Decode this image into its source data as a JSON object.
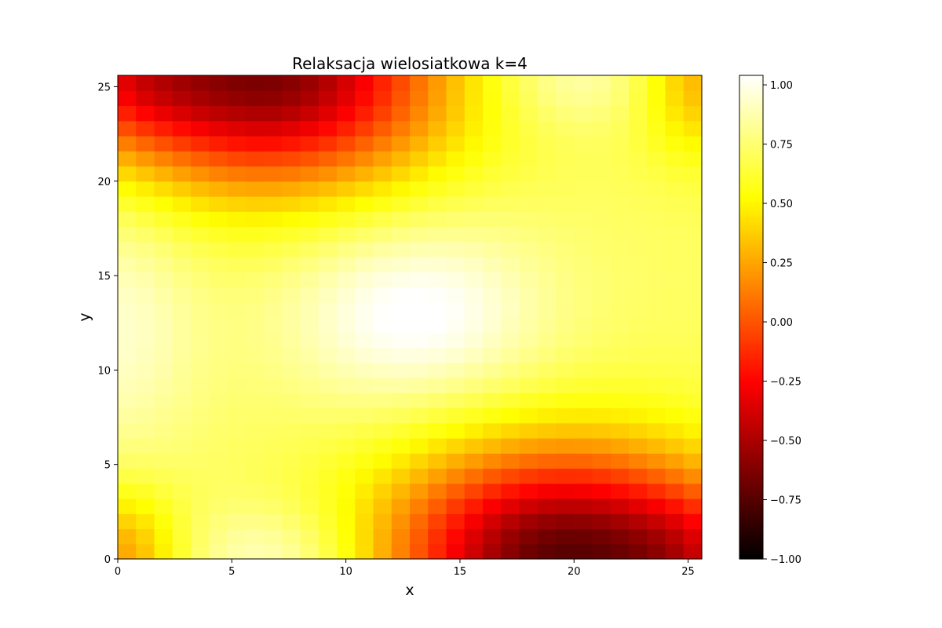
{
  "chart_data": {
    "type": "heatmap",
    "title": "Relaksacja wielosiatkowa k=4",
    "xlabel": "x",
    "ylabel": "y",
    "xlim": [
      0,
      25.6
    ],
    "ylim": [
      0,
      25.6
    ],
    "x_ticks": [
      0,
      5,
      10,
      15,
      20,
      25
    ],
    "y_ticks": [
      0,
      5,
      10,
      15,
      20,
      25
    ],
    "x_tick_labels": [
      "0",
      "5",
      "10",
      "15",
      "20",
      "25"
    ],
    "y_tick_labels": [
      "0",
      "5",
      "10",
      "15",
      "20",
      "25"
    ],
    "colormap": "hot",
    "clim": [
      -1.0,
      1.04
    ],
    "colorbar_ticks": [
      1.0,
      0.75,
      0.5,
      0.25,
      0.0,
      -0.25,
      -0.5,
      -0.75,
      -1.0
    ],
    "colorbar_tick_labels": [
      "1.00",
      "0.75",
      "0.50",
      "0.25",
      "0.00",
      "−0.25",
      "−0.50",
      "−0.75",
      "−1.00"
    ],
    "grid": "off",
    "cell_size": 0.8,
    "grid_size": 32,
    "field_centers": [
      {
        "x": 6.5,
        "y": 25.6,
        "amplitude": -1.35,
        "sx": 5.5,
        "sy": 4.2
      },
      {
        "x": 19.5,
        "y": 0.0,
        "amplitude": -1.45,
        "sx": 5.5,
        "sy": 4.2
      },
      {
        "x": 0.0,
        "y": 0.0,
        "amplitude": -0.5,
        "sx": 2.0,
        "sy": 2.6
      },
      {
        "x": 25.6,
        "y": 25.6,
        "amplitude": -0.45,
        "sx": 2.0,
        "sy": 3.0
      },
      {
        "x": 0.0,
        "y": 25.6,
        "amplitude": -0.35,
        "sx": 2.5,
        "sy": 2.5
      },
      {
        "x": 25.6,
        "y": 0.0,
        "amplitude": -0.3,
        "sx": 2.5,
        "sy": 2.5
      },
      {
        "x": 13.0,
        "y": 13.0,
        "amplitude": 0.35,
        "sx": 4.0,
        "sy": 3.5
      },
      {
        "x": 0.0,
        "y": 12.5,
        "amplitude": 0.22,
        "sx": 2.5,
        "sy": 5.0
      },
      {
        "x": 7.0,
        "y": 0.0,
        "amplitude": 0.25,
        "sx": 3.0,
        "sy": 2.0
      },
      {
        "x": 20.0,
        "y": 25.6,
        "amplitude": 0.2,
        "sx": 3.0,
        "sy": 2.0
      }
    ],
    "field_base": 0.72
  }
}
